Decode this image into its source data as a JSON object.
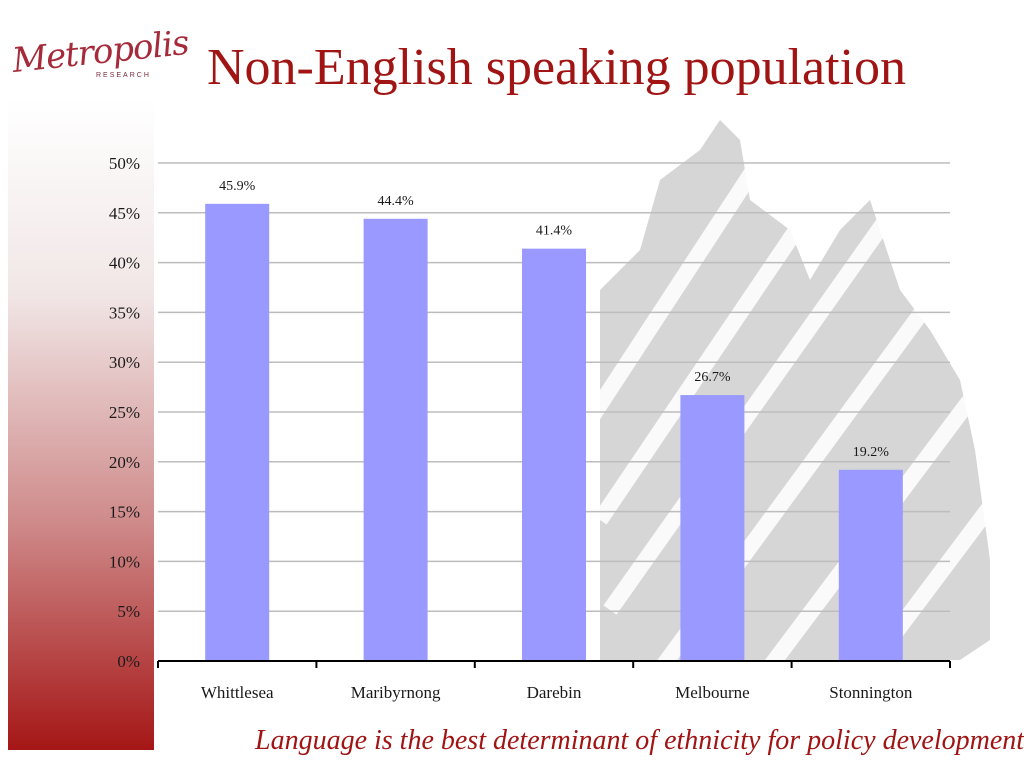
{
  "logo": {
    "script_text": "Metropolis",
    "sub_text": "RESEARCH"
  },
  "slide": {
    "footer_text": "Language is the best determinant of  ethnicity for policy development"
  },
  "colors": {
    "bar": "#9999ff",
    "title": "#a01414",
    "grid": "#bdbdbd"
  },
  "chart_data": {
    "type": "bar",
    "title": "Non-English speaking population",
    "xlabel": "",
    "ylabel": "",
    "categories": [
      "Whittlesea",
      "Maribyrnong",
      "Darebin",
      "Melbourne",
      "Stonnington"
    ],
    "values": [
      45.9,
      44.4,
      41.4,
      26.7,
      19.2
    ],
    "data_labels": [
      "45.9%",
      "44.4%",
      "41.4%",
      "26.7%",
      "19.2%"
    ],
    "ylim": [
      0,
      50
    ],
    "yticks": [
      0,
      5,
      10,
      15,
      20,
      25,
      30,
      35,
      40,
      45,
      50
    ],
    "ytick_labels": [
      "0%",
      "5%",
      "10%",
      "15%",
      "20%",
      "25%",
      "30%",
      "35%",
      "40%",
      "45%",
      "50%"
    ],
    "grid": true,
    "legend": "none"
  }
}
